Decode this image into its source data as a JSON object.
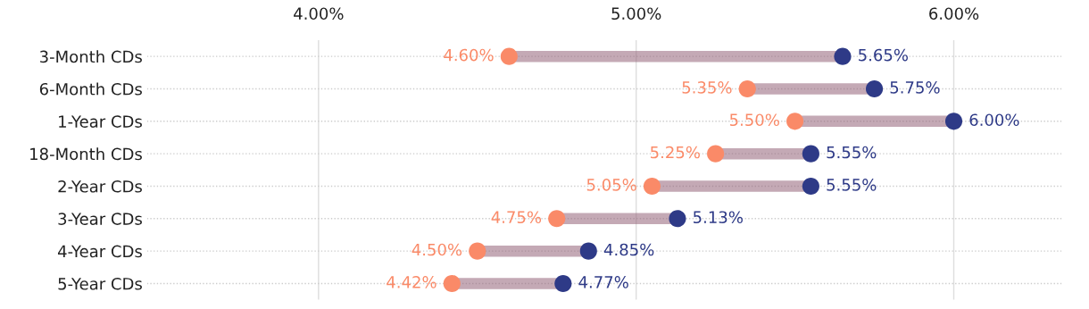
{
  "chart_data": {
    "type": "scatter",
    "orientation": "horizontal",
    "categories": [
      "3-Month CDs",
      "6-Month CDs",
      "1-Year CDs",
      "18-Month CDs",
      "2-Year CDs",
      "3-Year CDs",
      "4-Year CDs",
      "5-Year CDs"
    ],
    "series": [
      {
        "color": "#fa8a68",
        "values": [
          4.6,
          5.35,
          5.5,
          5.25,
          5.05,
          4.75,
          4.5,
          4.42
        ],
        "value_labels": [
          "4.60%",
          "5.35%",
          "5.50%",
          "5.25%",
          "5.05%",
          "4.75%",
          "4.50%",
          "4.42%"
        ]
      },
      {
        "color": "#2e3a87",
        "values": [
          5.65,
          5.75,
          6.0,
          5.55,
          5.55,
          5.13,
          4.85,
          4.77
        ],
        "value_labels": [
          "5.65%",
          "5.75%",
          "6.00%",
          "5.55%",
          "5.55%",
          "5.13%",
          "4.85%",
          "4.77%"
        ]
      }
    ],
    "xlim": [
      3.46,
      6.34
    ],
    "xticks": [
      {
        "value": 4,
        "label": "4.00%"
      },
      {
        "value": 5,
        "label": "5.00%"
      },
      {
        "value": 6,
        "label": "6.00%"
      }
    ],
    "grid": true,
    "marker": "circle"
  }
}
